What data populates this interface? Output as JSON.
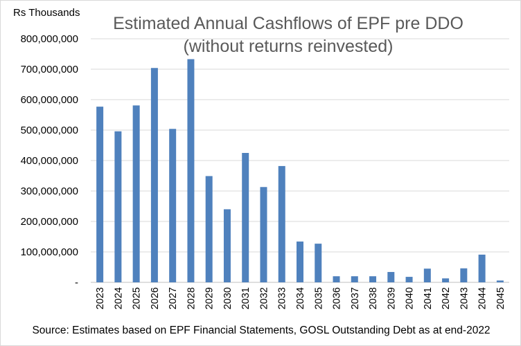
{
  "chart_data": {
    "type": "bar",
    "unit_label": "Rs Thousands",
    "title": "Estimated Annual Cashflows of EPF pre DDO",
    "subtitle": "(without returns reinvested)",
    "xlabel": "",
    "ylabel": "",
    "categories": [
      "2023",
      "2024",
      "2025",
      "2026",
      "2027",
      "2028",
      "2029",
      "2030",
      "2031",
      "2032",
      "2033",
      "2034",
      "2035",
      "2036",
      "2037",
      "2038",
      "2039",
      "2040",
      "2041",
      "2042",
      "2043",
      "2044",
      "2045"
    ],
    "values": [
      577000000,
      496000000,
      581000000,
      704000000,
      504000000,
      733000000,
      349000000,
      240000000,
      425000000,
      313000000,
      382000000,
      134000000,
      127000000,
      20000000,
      20000000,
      20000000,
      34000000,
      18000000,
      45000000,
      13000000,
      46000000,
      91000000,
      6000000
    ],
    "ylim": [
      0,
      800000000
    ],
    "yticks": [
      0,
      100000000,
      200000000,
      300000000,
      400000000,
      500000000,
      600000000,
      700000000,
      800000000
    ],
    "ytick_labels": [
      "-",
      "100,000,000",
      "200,000,000",
      "300,000,000",
      "400,000,000",
      "500,000,000",
      "600,000,000",
      "700,000,000",
      "800,000,000"
    ],
    "grid": true,
    "bar_color": "#4f81bd",
    "source": "Source: Estimates based on EPF Financial Statements, GOSL Outstanding Debt as at end-2022"
  }
}
